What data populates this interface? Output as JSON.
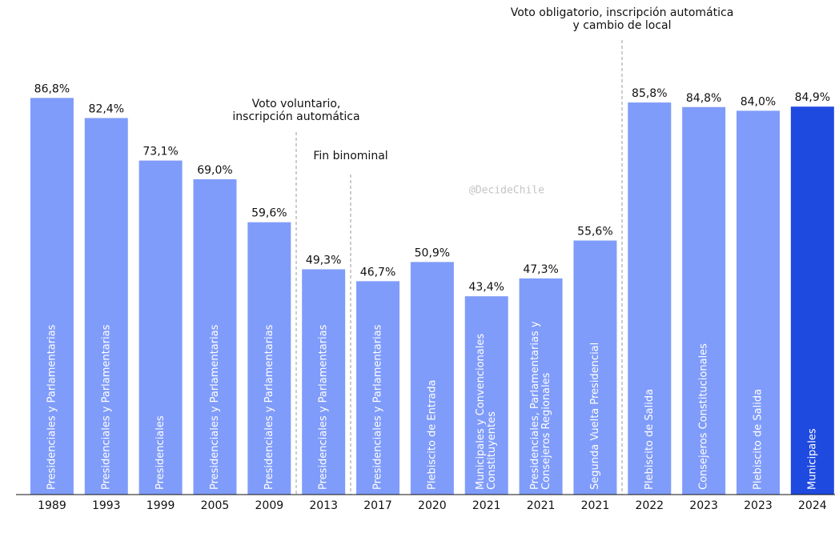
{
  "chart_data": {
    "type": "bar",
    "categories": [
      "1989",
      "1993",
      "1999",
      "2005",
      "2009",
      "2013",
      "2017",
      "2020",
      "2021",
      "2021",
      "2021",
      "2022",
      "2023",
      "2023",
      "2024"
    ],
    "values": [
      86.8,
      82.4,
      73.1,
      69.0,
      59.6,
      49.3,
      46.7,
      50.9,
      43.4,
      47.3,
      55.6,
      85.8,
      84.8,
      84.0,
      84.9
    ],
    "value_labels": [
      "86,8%",
      "82,4%",
      "73,1%",
      "69,0%",
      "59,6%",
      "49,3%",
      "46,7%",
      "50,9%",
      "43,4%",
      "47,3%",
      "55,6%",
      "85,8%",
      "84,8%",
      "84,0%",
      "84,9%"
    ],
    "bar_labels": [
      [
        "Presidenciales y Parlamentarias"
      ],
      [
        "Presidenciales y Parlamentarias"
      ],
      [
        "Presidenciales"
      ],
      [
        "Presidenciales y Parlamentarias"
      ],
      [
        "Presidenciales y Parlamentarias"
      ],
      [
        "Presidenciales y Parlamentarias"
      ],
      [
        "Presidenciales y Parlamentarias"
      ],
      [
        "Plebiscito de Entrada"
      ],
      [
        "Municipales y Convencionales",
        "Constituyentes"
      ],
      [
        "Presidenciales, Parlamentarias y",
        "Consejeros Regionales"
      ],
      [
        "Segunda Vuelta Presidencial"
      ],
      [
        "Plebiscito de Salida"
      ],
      [
        "Consejeros Constitucionales"
      ],
      [
        "Plebiscito de Salida"
      ],
      [
        "Municipales"
      ]
    ],
    "colors": [
      "#809cfa",
      "#809cfa",
      "#809cfa",
      "#809cfa",
      "#809cfa",
      "#809cfa",
      "#809cfa",
      "#809cfa",
      "#809cfa",
      "#809cfa",
      "#809cfa",
      "#809cfa",
      "#809cfa",
      "#809cfa",
      "#1f4ae0"
    ],
    "annotations": [
      [
        "Voto voluntario,",
        "inscripción automática"
      ],
      [
        "Fin binominal"
      ],
      [
        "Voto obligatorio, inscripción automática",
        "y cambio de local"
      ]
    ],
    "watermark": "@DecideChile",
    "ylim": [
      0,
      100
    ]
  }
}
